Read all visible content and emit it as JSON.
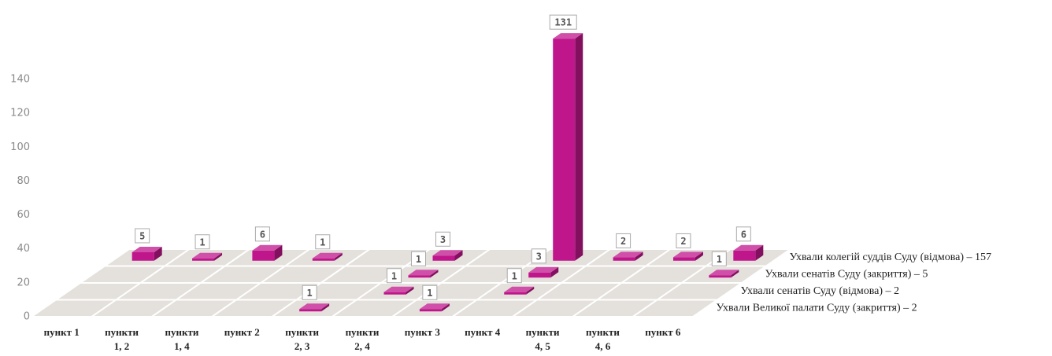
{
  "chart_data": {
    "type": "bar3d",
    "categories": [
      [
        "пункт 1"
      ],
      [
        "пункти",
        "1, 2"
      ],
      [
        "пункти",
        "1, 4"
      ],
      [
        "пункт 2"
      ],
      [
        "пункти",
        "2, 3"
      ],
      [
        "пункти",
        "2, 4"
      ],
      [
        "пункт 3"
      ],
      [
        "пункт 4"
      ],
      [
        "пункти",
        "4, 5"
      ],
      [
        "пункти",
        "4, 6"
      ],
      [
        "пункт 6"
      ]
    ],
    "series": [
      {
        "name": "Ухвали колегій суддів Суду (відмова) – 157",
        "color": "#c0168c",
        "values": [
          5,
          1,
          6,
          1,
          null,
          3,
          null,
          131,
          2,
          2,
          6
        ]
      },
      {
        "name": "Ухвали сенатів Суду (закриття) – 5",
        "color": "#c0168c",
        "values": [
          null,
          null,
          null,
          null,
          null,
          1,
          null,
          3,
          null,
          null,
          1
        ]
      },
      {
        "name": "Ухвали сенатів Суду (відмова) – 2",
        "color": "#c0168c",
        "values": [
          null,
          null,
          null,
          null,
          null,
          1,
          null,
          1,
          null,
          null,
          null
        ]
      },
      {
        "name": "Ухвали Великої палати Суду (закриття) – 2",
        "color": "#c0168c",
        "values": [
          null,
          null,
          null,
          null,
          1,
          null,
          1,
          null,
          null,
          null,
          null
        ]
      }
    ],
    "ylim": [
      0,
      140
    ],
    "yticks": [
      0,
      20,
      40,
      60,
      80,
      100,
      120,
      140
    ]
  }
}
